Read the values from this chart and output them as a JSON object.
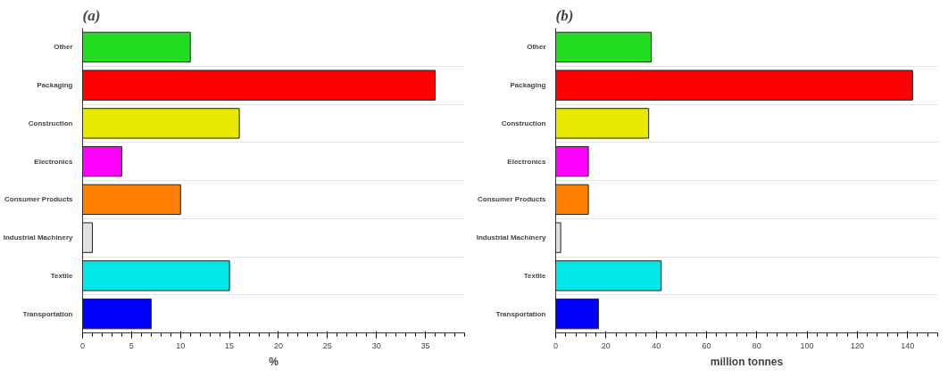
{
  "chart_data": [
    {
      "type": "bar",
      "orientation": "horizontal",
      "title": "(a)",
      "xlabel": "%",
      "categories": [
        "Other",
        "Packaging",
        "Construction",
        "Electronics",
        "Consumer Products",
        "Industrial Machinery",
        "Textile",
        "Transportation"
      ],
      "values": [
        11,
        36,
        16,
        4,
        10,
        1,
        15,
        7
      ],
      "colors": [
        "#22dd22",
        "#ff0000",
        "#e8e800",
        "#ff00ff",
        "#ff8000",
        "#e0e0e0",
        "#00e8e8",
        "#0000ff"
      ],
      "xlim": [
        0,
        39
      ],
      "xticks": [
        0,
        5,
        10,
        15,
        20,
        25,
        30,
        35
      ],
      "grid": "y"
    },
    {
      "type": "bar",
      "orientation": "horizontal",
      "title": "(b)",
      "xlabel": "million tonnes",
      "categories": [
        "Other",
        "Packaging",
        "Construction",
        "Electronics",
        "Consumer Products",
        "Industrial Machinery",
        "Textile",
        "Transportation"
      ],
      "values": [
        38,
        142,
        37,
        13,
        13,
        2,
        42,
        17
      ],
      "colors": [
        "#22dd22",
        "#ff0000",
        "#e8e800",
        "#ff00ff",
        "#ff8000",
        "#e0e0e0",
        "#00e8e8",
        "#0000ff"
      ],
      "xlim": [
        0,
        152
      ],
      "xticks": [
        0,
        20,
        40,
        60,
        80,
        100,
        120,
        140
      ],
      "grid": "y"
    }
  ]
}
